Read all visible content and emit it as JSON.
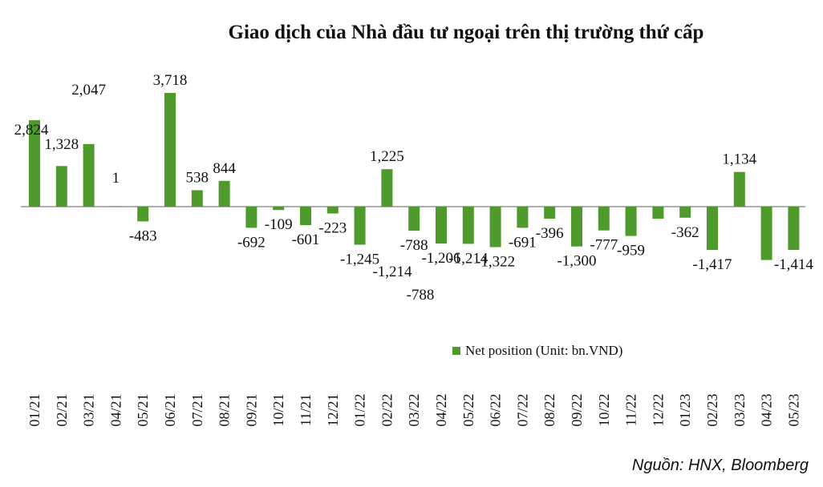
{
  "chart_data": {
    "type": "bar",
    "title": "Giao dịch của Nhà đầu tư ngoại trên thị trường thứ cấp",
    "categories": [
      "01/21",
      "02/21",
      "03/21",
      "04/21",
      "05/21",
      "06/21",
      "07/21",
      "08/21",
      "09/21",
      "10/21",
      "11/21",
      "12/21",
      "01/22",
      "02/22",
      "03/22",
      "04/22",
      "05/22",
      "06/22",
      "07/22",
      "08/22",
      "09/22",
      "10/22",
      "11/22",
      "12/22",
      "01/23",
      "02/23",
      "03/23",
      "04/23",
      "05/23"
    ],
    "series": [
      {
        "name": "Net position (Unit: bn.VND)",
        "color": "#4e9a2a",
        "values": [
          2824,
          1328,
          2047,
          1,
          -483,
          3718,
          538,
          844,
          -692,
          -109,
          -601,
          -223,
          -1245,
          1225,
          -788,
          -1206,
          -1214,
          -1322,
          -691,
          -396,
          -1300,
          -777,
          -959,
          -396,
          -362,
          -1417,
          1134,
          -1745,
          -1414
        ],
        "labels": [
          "2,824",
          "1,328",
          "2,047",
          "1",
          "-483",
          "3,718",
          "538",
          "844",
          "-692",
          "-109",
          "-601",
          "-223",
          "-1,245",
          "1,225",
          "-788",
          "-1,206",
          "-1,214",
          "-1,322",
          "-691",
          "-396",
          "-1,300",
          "-777",
          "-959",
          "",
          "-362",
          "-1,417",
          "1,134",
          "",
          "-1,414"
        ]
      }
    ],
    "extra_labels": [
      "-1,214",
      "-788"
    ],
    "legend_position": "bottom",
    "grid": false,
    "ylim": [
      -2700,
      4400
    ]
  },
  "source": "Nguồn: HNX, Bloomberg"
}
